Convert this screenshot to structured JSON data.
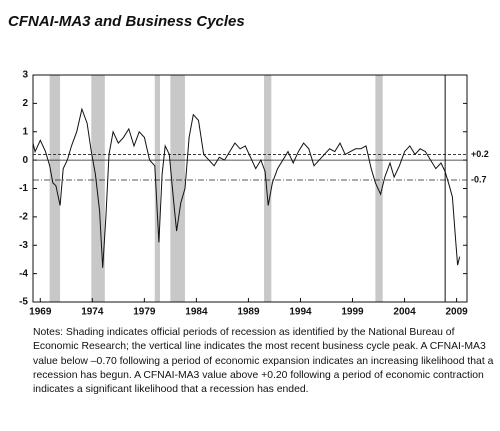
{
  "chart_data": {
    "type": "line",
    "title": "CFNAI-MA3 and Business Cycles",
    "series": [
      {
        "name": "CFNAI-MA3",
        "color": "#111111",
        "x": [
          1968.3,
          1968.5,
          1969.0,
          1969.5,
          1969.9,
          1970.2,
          1970.5,
          1970.9,
          1971.2,
          1971.6,
          1972.0,
          1972.5,
          1973.0,
          1973.5,
          1973.9,
          1974.3,
          1974.7,
          1975.0,
          1975.3,
          1975.6,
          1976.0,
          1976.5,
          1977.0,
          1977.5,
          1978.0,
          1978.5,
          1979.0,
          1979.5,
          1980.0,
          1980.4,
          1980.7,
          1981.0,
          1981.4,
          1981.8,
          1982.1,
          1982.5,
          1982.9,
          1983.3,
          1983.7,
          1984.2,
          1984.7,
          1985.2,
          1985.7,
          1986.2,
          1986.7,
          1987.2,
          1987.7,
          1988.2,
          1988.7,
          1989.2,
          1989.7,
          1990.2,
          1990.6,
          1990.9,
          1991.3,
          1991.8,
          1992.3,
          1992.8,
          1993.3,
          1993.8,
          1994.3,
          1994.8,
          1995.3,
          1995.8,
          1996.3,
          1996.8,
          1997.3,
          1997.8,
          1998.3,
          1998.8,
          1999.3,
          1999.8,
          2000.3,
          2000.8,
          2001.2,
          2001.7,
          2002.1,
          2002.6,
          2003.0,
          2003.5,
          2004.0,
          2004.5,
          2005.0,
          2005.5,
          2006.0,
          2006.5,
          2007.0,
          2007.5,
          2007.9,
          2008.3,
          2008.6,
          2008.9,
          2009.1,
          2009.3
        ],
        "values": [
          0.6,
          0.3,
          0.7,
          0.3,
          -0.2,
          -0.8,
          -0.9,
          -1.6,
          -0.3,
          0.0,
          0.5,
          1.0,
          1.8,
          1.3,
          0.3,
          -0.5,
          -1.8,
          -3.8,
          -2.0,
          0.2,
          1.0,
          0.6,
          0.8,
          1.1,
          0.5,
          1.0,
          0.8,
          0.0,
          -0.2,
          -2.9,
          -0.5,
          0.5,
          0.2,
          -1.4,
          -2.5,
          -1.5,
          -1.0,
          0.8,
          1.6,
          1.4,
          0.2,
          0.0,
          -0.2,
          0.1,
          0.0,
          0.3,
          0.6,
          0.4,
          0.5,
          0.1,
          -0.3,
          0.0,
          -0.4,
          -1.6,
          -0.8,
          -0.3,
          0.0,
          0.3,
          -0.1,
          0.3,
          0.6,
          0.4,
          -0.2,
          0.0,
          0.2,
          0.4,
          0.3,
          0.6,
          0.2,
          0.3,
          0.4,
          0.4,
          0.5,
          -0.3,
          -0.8,
          -1.2,
          -0.6,
          -0.1,
          -0.6,
          -0.2,
          0.3,
          0.5,
          0.2,
          0.4,
          0.3,
          0.0,
          -0.3,
          -0.1,
          -0.4,
          -0.9,
          -1.3,
          -2.8,
          -3.7,
          -3.4
        ]
      }
    ],
    "recessions": [
      [
        1969.9,
        1970.9
      ],
      [
        1973.9,
        1975.2
      ],
      [
        1980.0,
        1980.5
      ],
      [
        1981.5,
        1982.9
      ],
      [
        1990.5,
        1991.2
      ],
      [
        2001.2,
        2001.9
      ]
    ],
    "recession_color": "#c8c8c8",
    "peak": 2007.9,
    "reference_lines": [
      {
        "value": 0.2,
        "label": "+0.2"
      },
      {
        "value": -0.7,
        "label": "-0.7"
      }
    ],
    "xlim": [
      1968.3,
      2010
    ],
    "xticks": [
      1969,
      1974,
      1979,
      1984,
      1989,
      1994,
      1999,
      2004,
      2009
    ],
    "ylim": [
      -5,
      3
    ],
    "yticks": [
      -5,
      -4,
      -3,
      -2,
      -1,
      0,
      1,
      2,
      3
    ],
    "notes": "Notes: Shading indicates official periods of recession as identified by the National Bureau of Economic Research; the vertical line indicates the most recent business cycle peak. A CFNAI-MA3 value below –0.70 following a period of economic expansion indicates an increasing likelihood that a recession has begun. A CFNAI-MA3 value above +0.20 following a period of economic contraction indicates a significant likelihood that a recession has ended."
  }
}
